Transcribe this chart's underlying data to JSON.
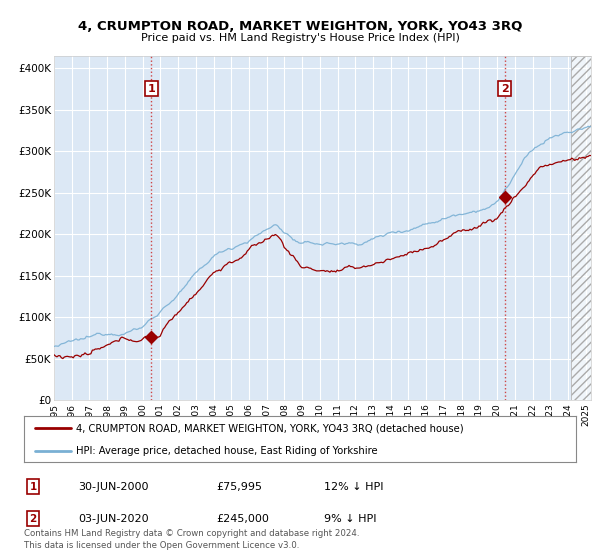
{
  "title": "4, CRUMPTON ROAD, MARKET WEIGHTON, YORK, YO43 3RQ",
  "subtitle": "Price paid vs. HM Land Registry's House Price Index (HPI)",
  "ylabel_ticks": [
    "£0",
    "£50K",
    "£100K",
    "£150K",
    "£200K",
    "£250K",
    "£300K",
    "£350K",
    "£400K"
  ],
  "ytick_values": [
    0,
    50000,
    100000,
    150000,
    200000,
    250000,
    300000,
    350000,
    400000
  ],
  "ylim": [
    0,
    415000
  ],
  "xlim_start": 1995.0,
  "xlim_end": 2025.3,
  "sale1": {
    "date_x": 2000.5,
    "price": 75995,
    "label": "1"
  },
  "sale2": {
    "date_x": 2020.42,
    "price": 245000,
    "label": "2"
  },
  "legend_line1": "4, CRUMPTON ROAD, MARKET WEIGHTON, YORK, YO43 3RQ (detached house)",
  "legend_line2": "HPI: Average price, detached house, East Riding of Yorkshire",
  "table_row1": [
    "1",
    "30-JUN-2000",
    "£75,995",
    "12% ↓ HPI"
  ],
  "table_row2": [
    "2",
    "03-JUN-2020",
    "£245,000",
    "9% ↓ HPI"
  ],
  "footer": "Contains HM Land Registry data © Crown copyright and database right 2024.\nThis data is licensed under the Open Government Licence v3.0.",
  "color_red": "#990000",
  "color_blue": "#7ab0d4",
  "color_vline": "#cc3333",
  "background_plot": "#dce8f5",
  "background_fig": "#ffffff",
  "grid_color": "#ffffff"
}
